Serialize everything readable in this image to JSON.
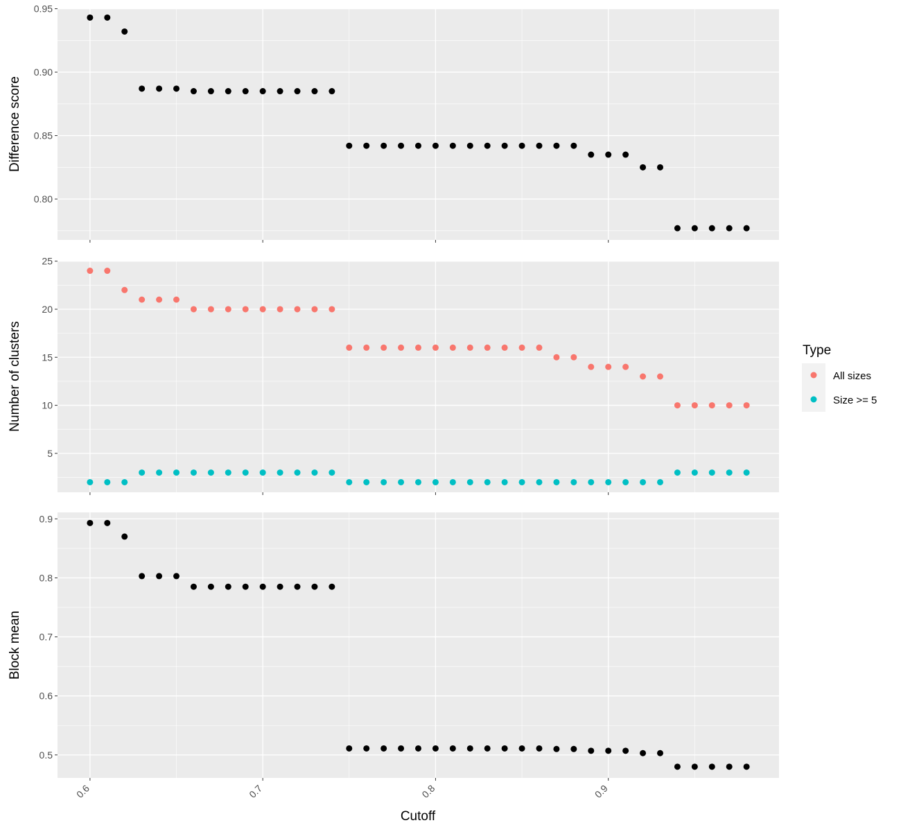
{
  "chart_data": {
    "type": "scatter",
    "xlabel": "Cutoff",
    "x_ticks": [
      0.6,
      0.7,
      0.8,
      0.9
    ],
    "x_tick_labels": [
      "0.6",
      "0.7",
      "0.8",
      "0.9"
    ],
    "xlim": [
      0.5812,
      0.9988
    ],
    "x": [
      0.6,
      0.61,
      0.62,
      0.63,
      0.64,
      0.65,
      0.66,
      0.67,
      0.68,
      0.69,
      0.7,
      0.71,
      0.72,
      0.73,
      0.74,
      0.75,
      0.76,
      0.77,
      0.78,
      0.79,
      0.8,
      0.81,
      0.82,
      0.83,
      0.84,
      0.85,
      0.86,
      0.87,
      0.88,
      0.89,
      0.9,
      0.91,
      0.92,
      0.93,
      0.94,
      0.95,
      0.96,
      0.97,
      0.98
    ],
    "grid": true,
    "background": "#ebebeb",
    "panels": [
      {
        "ylabel": "Difference score",
        "ylim": [
          0.7678,
          0.9503
        ],
        "y_ticks": [
          0.8,
          0.85,
          0.9,
          0.95
        ],
        "y_tick_labels": [
          "0.80",
          "0.85",
          "0.90",
          "0.95"
        ],
        "series": [
          {
            "color": "#000000",
            "values": [
              0.943,
              0.943,
              0.932,
              0.887,
              0.887,
              0.887,
              0.885,
              0.885,
              0.885,
              0.885,
              0.885,
              0.885,
              0.885,
              0.885,
              0.885,
              0.842,
              0.842,
              0.842,
              0.842,
              0.842,
              0.842,
              0.842,
              0.842,
              0.842,
              0.842,
              0.842,
              0.842,
              0.842,
              0.842,
              0.835,
              0.835,
              0.835,
              0.825,
              0.825,
              0.777,
              0.777,
              0.777,
              0.777,
              0.777
            ]
          }
        ]
      },
      {
        "ylabel": "Number of clusters",
        "ylim": [
          0.95,
          25.05
        ],
        "y_ticks": [
          5,
          10,
          15,
          20,
          25
        ],
        "y_tick_labels": [
          "5",
          "10",
          "15",
          "20",
          "25"
        ],
        "series": [
          {
            "name": "All sizes",
            "color": "#f8766d",
            "values": [
              24,
              24,
              22,
              21,
              21,
              21,
              20,
              20,
              20,
              20,
              20,
              20,
              20,
              20,
              20,
              16,
              16,
              16,
              16,
              16,
              16,
              16,
              16,
              16,
              16,
              16,
              16,
              15,
              15,
              14,
              14,
              14,
              13,
              13,
              10,
              10,
              10,
              10,
              10
            ]
          },
          {
            "name": "Size >= 5",
            "color": "#00bfc4",
            "values": [
              2,
              2,
              2,
              3,
              3,
              3,
              3,
              3,
              3,
              3,
              3,
              3,
              3,
              3,
              3,
              2,
              2,
              2,
              2,
              2,
              2,
              2,
              2,
              2,
              2,
              2,
              2,
              2,
              2,
              2,
              2,
              2,
              2,
              2,
              3,
              3,
              3,
              3,
              3
            ]
          }
        ]
      },
      {
        "ylabel": "Block mean",
        "ylim": [
          0.461,
          0.911
        ],
        "y_ticks": [
          0.5,
          0.6,
          0.7,
          0.8,
          0.9
        ],
        "y_tick_labels": [
          "0.5",
          "0.6",
          "0.7",
          "0.8",
          "0.9"
        ],
        "series": [
          {
            "color": "#000000",
            "values": [
              0.893,
              0.893,
              0.87,
              0.803,
              0.803,
              0.803,
              0.785,
              0.785,
              0.785,
              0.785,
              0.785,
              0.785,
              0.785,
              0.785,
              0.785,
              0.511,
              0.511,
              0.511,
              0.511,
              0.511,
              0.511,
              0.511,
              0.511,
              0.511,
              0.511,
              0.511,
              0.511,
              0.51,
              0.51,
              0.507,
              0.507,
              0.507,
              0.503,
              0.503,
              0.48,
              0.48,
              0.48,
              0.48,
              0.48
            ]
          }
        ]
      }
    ],
    "legend": {
      "title": "Type",
      "position": "right",
      "entries": [
        {
          "label": "All sizes",
          "color": "#f8766d"
        },
        {
          "label": "Size >= 5",
          "color": "#00bfc4"
        }
      ]
    }
  }
}
